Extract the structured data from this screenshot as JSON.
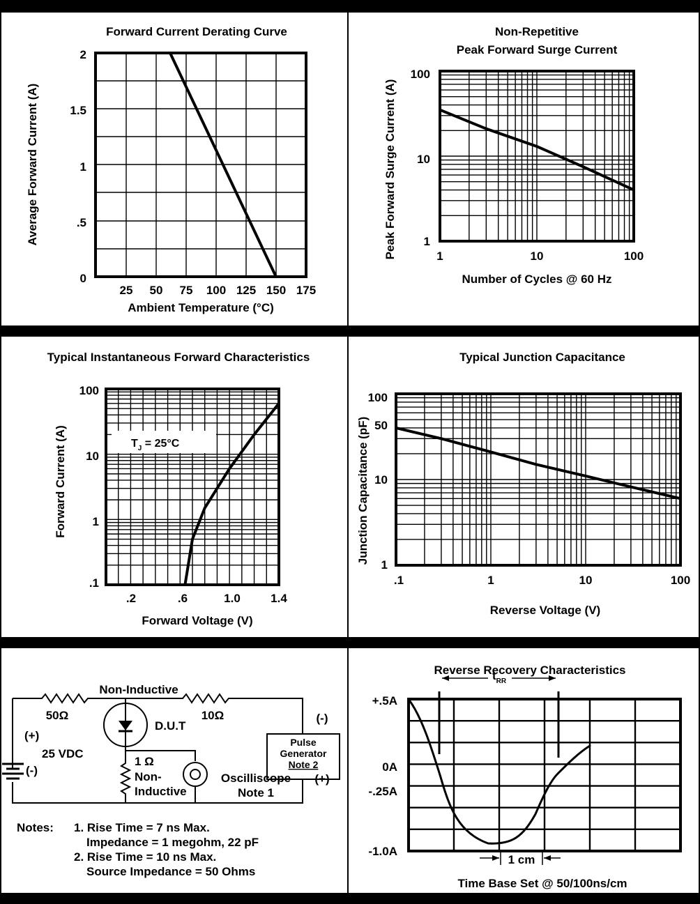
{
  "chart_data": [
    {
      "type": "line",
      "title": "Forward Current Derating Curve",
      "xlabel": "Ambient Temperature (°C)",
      "ylabel": "Average Forward Current (A)",
      "xlim": [
        0,
        175
      ],
      "ylim": [
        0,
        2
      ],
      "x_ticks": [
        "25",
        "50",
        "75",
        "100",
        "125",
        "150",
        "175"
      ],
      "y_ticks": [
        "0",
        ".5",
        "1",
        "1.5",
        "2"
      ],
      "grid": true,
      "series": [
        {
          "x": [
            0,
            62,
            150
          ],
          "y": [
            2,
            2,
            0
          ]
        }
      ]
    },
    {
      "type": "line",
      "title_lines": [
        "Non-Repetitive",
        "Peak Forward Surge Current"
      ],
      "xlabel": "Number of Cycles @ 60 Hz",
      "ylabel": "Peak Forward Surge Current (A)",
      "x_scale": "log",
      "y_scale": "log",
      "xlim": [
        1,
        100
      ],
      "ylim": [
        1,
        100
      ],
      "x_ticks": [
        "1",
        "10",
        "100"
      ],
      "y_ticks": [
        "1",
        "10",
        "100"
      ],
      "grid": true,
      "series": [
        {
          "x": [
            1,
            3,
            10,
            30,
            100
          ],
          "y": [
            35,
            21,
            13,
            7.5,
            4
          ]
        }
      ]
    },
    {
      "type": "line",
      "title": "Typical Instantaneous Forward Characteristics",
      "xlabel": "Forward Voltage (V)",
      "ylabel": "Forward Current (A)",
      "y_scale": "log",
      "xlim": [
        0,
        1.4
      ],
      "ylim": [
        0.1,
        100
      ],
      "x_ticks": [
        ".2",
        ".6",
        "1.0",
        "1.4"
      ],
      "y_ticks": [
        ".1",
        "1",
        "10",
        "100"
      ],
      "annotation": {
        "base": "T",
        "sub": "J",
        "rest": " = 25°C"
      },
      "grid": true,
      "series": [
        {
          "x": [
            0.64,
            0.7,
            0.8,
            1.0,
            1.2,
            1.4
          ],
          "y": [
            0.1,
            0.5,
            1.5,
            6,
            20,
            60
          ]
        }
      ]
    },
    {
      "type": "line",
      "title": "Typical Junction Capacitance",
      "xlabel": "Reverse Voltage (V)",
      "ylabel": "Junction Capacitance (pF)",
      "x_scale": "log",
      "y_scale": "log",
      "xlim": [
        0.1,
        100
      ],
      "ylim": [
        1,
        100
      ],
      "x_ticks": [
        ".1",
        "1",
        "10",
        "100"
      ],
      "y_ticks": [
        "1",
        "10",
        "50",
        "100"
      ],
      "grid": true,
      "series": [
        {
          "x": [
            0.1,
            0.3,
            1,
            3,
            10,
            30,
            100
          ],
          "y": [
            40,
            30,
            21,
            15,
            11,
            8.2,
            6
          ]
        }
      ]
    },
    {
      "type": "line",
      "title": "Reverse Recovery Characteristics",
      "xlabel": "Time Base Set @ 50/100ns/cm",
      "y_ticks": [
        "+.5A",
        "0A",
        "-.25A",
        "-1.0A"
      ],
      "trr_label": {
        "base": "t",
        "sub": "RR"
      },
      "scale_label": "1 cm",
      "grid": true
    }
  ],
  "circuit": {
    "non_inductive_top": "Non-Inductive",
    "r1": "50Ω",
    "r2": "10Ω",
    "dut": "D.U.T",
    "plus_left": "(+)",
    "minus_left": "(-)",
    "source": "25 VDC",
    "r3": "1 Ω",
    "r3_sub1": "Non-",
    "r3_sub2": "Inductive",
    "scope1": "Oscilliscope",
    "scope2": "Note 1",
    "minus_right": "(-)",
    "plus_right": "(+)",
    "pulse1": "Pulse",
    "pulse2": "Generator",
    "pulse3": "Note 2",
    "notes_label": "Notes:",
    "note1a": "1. Rise Time = 7 ns Max.",
    "note1b": "Impedance = 1 megohm, 22 pF",
    "note2a": "2. Rise Time = 10 ns Max.",
    "note2b": "Source Impedance = 50 Ohms"
  }
}
